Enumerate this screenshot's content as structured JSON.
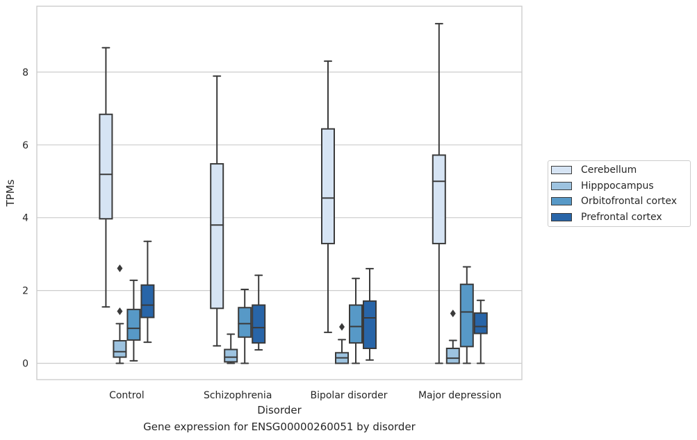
{
  "caption": "Gene expression for ENSG00000260051 by disorder",
  "chart_data": {
    "type": "boxplot",
    "xlabel": "Disorder",
    "ylabel": "TPMs",
    "ylim": [
      -0.45,
      9.8
    ],
    "yticks": [
      0,
      2,
      4,
      6,
      8
    ],
    "grid": "horizontal",
    "legend_position": "right",
    "categories": [
      "Control",
      "Schizophrenia",
      "Bipolar disorder",
      "Major depression"
    ],
    "series": [
      {
        "name": "Cerebellum",
        "color": "#d6e4f4",
        "boxes": [
          {
            "whisker_low": 1.55,
            "q1": 3.97,
            "median": 5.19,
            "q3": 6.84,
            "whisker_high": 8.67,
            "outliers": []
          },
          {
            "whisker_low": 0.48,
            "q1": 1.51,
            "median": 3.8,
            "q3": 5.48,
            "whisker_high": 7.89,
            "outliers": []
          },
          {
            "whisker_low": 0.85,
            "q1": 3.29,
            "median": 4.54,
            "q3": 6.44,
            "whisker_high": 8.3,
            "outliers": []
          },
          {
            "whisker_low": 0.0,
            "q1": 3.29,
            "median": 5.0,
            "q3": 5.72,
            "whisker_high": 9.33,
            "outliers": []
          }
        ]
      },
      {
        "name": "Hipppocampus",
        "color": "#9dc3e0",
        "boxes": [
          {
            "whisker_low": 0.0,
            "q1": 0.17,
            "median": 0.32,
            "q3": 0.62,
            "whisker_high": 1.09,
            "outliers": [
              1.43,
              2.61
            ]
          },
          {
            "whisker_low": 0.0,
            "q1": 0.04,
            "median": 0.17,
            "q3": 0.38,
            "whisker_high": 0.8,
            "outliers": []
          },
          {
            "whisker_low": 0.0,
            "q1": 0.0,
            "median": 0.15,
            "q3": 0.29,
            "whisker_high": 0.65,
            "outliers": [
              1.0
            ]
          },
          {
            "whisker_low": 0.0,
            "q1": 0.0,
            "median": 0.14,
            "q3": 0.41,
            "whisker_high": 0.63,
            "outliers": [
              1.37
            ]
          }
        ]
      },
      {
        "name": "Orbitofrontal cortex",
        "color": "#5799c7",
        "boxes": [
          {
            "whisker_low": 0.07,
            "q1": 0.64,
            "median": 0.96,
            "q3": 1.48,
            "whisker_high": 2.28,
            "outliers": []
          },
          {
            "whisker_low": 0.0,
            "q1": 0.72,
            "median": 1.09,
            "q3": 1.53,
            "whisker_high": 2.03,
            "outliers": []
          },
          {
            "whisker_low": 0.0,
            "q1": 0.56,
            "median": 1.01,
            "q3": 1.6,
            "whisker_high": 2.33,
            "outliers": []
          },
          {
            "whisker_low": 0.0,
            "q1": 0.46,
            "median": 1.41,
            "q3": 2.17,
            "whisker_high": 2.65,
            "outliers": []
          }
        ]
      },
      {
        "name": "Prefrontal cortex",
        "color": "#2865a8",
        "boxes": [
          {
            "whisker_low": 0.58,
            "q1": 1.26,
            "median": 1.6,
            "q3": 2.15,
            "whisker_high": 3.35,
            "outliers": []
          },
          {
            "whisker_low": 0.37,
            "q1": 0.56,
            "median": 0.98,
            "q3": 1.6,
            "whisker_high": 2.42,
            "outliers": []
          },
          {
            "whisker_low": 0.09,
            "q1": 0.41,
            "median": 1.25,
            "q3": 1.71,
            "whisker_high": 2.6,
            "outliers": []
          },
          {
            "whisker_low": 0.0,
            "q1": 0.82,
            "median": 1.01,
            "q3": 1.38,
            "whisker_high": 1.73,
            "outliers": []
          }
        ]
      }
    ]
  }
}
